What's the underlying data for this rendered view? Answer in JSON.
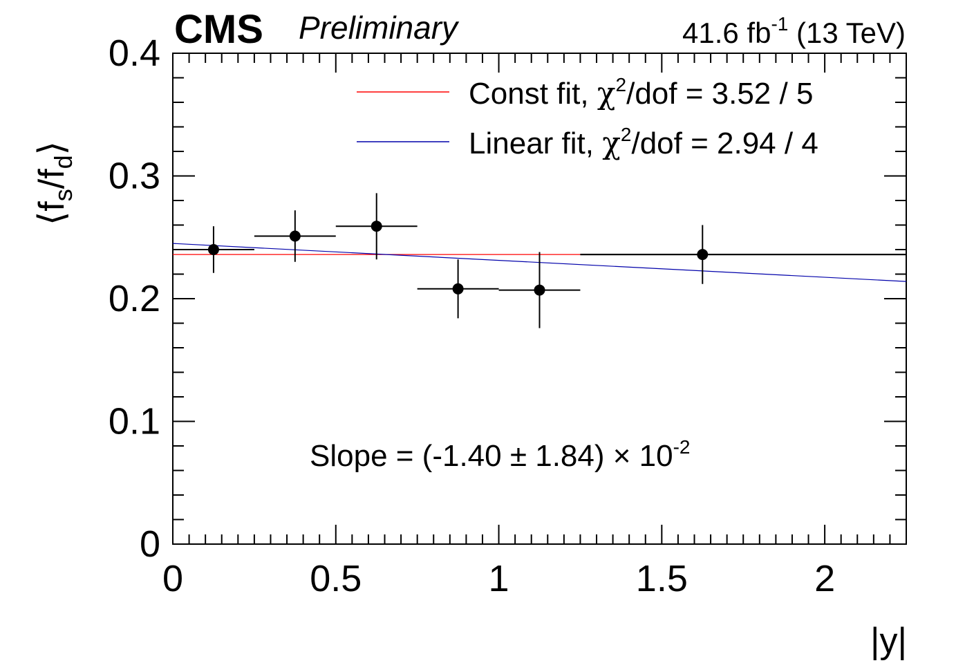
{
  "header": {
    "experiment": "CMS",
    "status": "Preliminary",
    "lumi_value": "41.6 fb",
    "lumi_exp": "-1",
    "energy": " (13 TeV)"
  },
  "colors": {
    "const_fit": "#ff0000",
    "linear_fit": "#0000aa",
    "data": "#000000"
  },
  "chart_data": {
    "type": "scatter",
    "xlabel": "|y|",
    "ylabel": "⟨f_s/f_d⟩",
    "xlim": [
      0,
      2.25
    ],
    "ylim": [
      0,
      0.4
    ],
    "x_ticks": [
      {
        "value": 0,
        "label": "0"
      },
      {
        "value": 0.5,
        "label": "0.5"
      },
      {
        "value": 1,
        "label": "1"
      },
      {
        "value": 1.5,
        "label": "1.5"
      },
      {
        "value": 2,
        "label": "2"
      }
    ],
    "y_ticks": [
      {
        "value": 0,
        "label": "0"
      },
      {
        "value": 0.1,
        "label": "0.1"
      },
      {
        "value": 0.2,
        "label": "0.2"
      },
      {
        "value": 0.3,
        "label": "0.3"
      },
      {
        "value": 0.4,
        "label": "0.4"
      }
    ],
    "series": [
      {
        "name": "Data",
        "x": [
          0.125,
          0.375,
          0.625,
          0.875,
          1.125,
          1.625
        ],
        "x_low": [
          0.0,
          0.25,
          0.5,
          0.75,
          1.0,
          1.25
        ],
        "x_high": [
          0.25,
          0.5,
          0.75,
          1.0,
          1.25,
          2.25
        ],
        "y": [
          0.24,
          0.251,
          0.259,
          0.208,
          0.207,
          0.236
        ],
        "y_err": [
          0.019,
          0.021,
          0.027,
          0.024,
          0.031,
          0.024
        ]
      }
    ],
    "fits": [
      {
        "name": "const",
        "label": "Const fit, χ²/dof = 3.52 / 5",
        "x0": 0.0,
        "x1": 1.25,
        "y0": 0.236,
        "y1": 0.236
      },
      {
        "name": "linear",
        "label": "Linear fit, χ²/dof = 2.94 / 4",
        "x0": 0.0,
        "x1": 2.25,
        "y0": 0.245,
        "y1": 0.214
      }
    ],
    "legend": {
      "position": "top-right",
      "const_text": "Const fit, ",
      "const_chi_suffix": "/dof = 3.52 / 5",
      "linear_text": "Linear fit, ",
      "linear_chi_suffix": "/dof = 2.94 / 4",
      "chi_symbol": "χ",
      "chi_exp": "2"
    },
    "annotation": {
      "slope_main": "Slope = (-1.40 ± 1.84) × 10",
      "slope_exp": "-2"
    }
  }
}
